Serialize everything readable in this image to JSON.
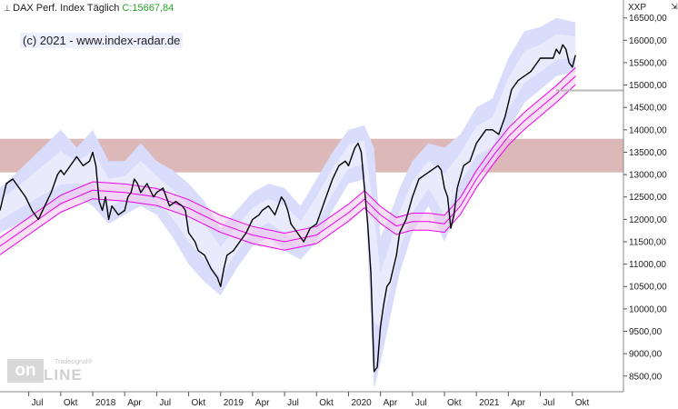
{
  "header": {
    "instrument": "DAX Perf. Index",
    "interval": "Täglich",
    "last": "C:15667,84"
  },
  "copyright": "(c) 2021 - www.index-radar.de",
  "ticker_label": "XXP",
  "control_glyph": "⇲",
  "logo": {
    "trademark": "Tradesignal®",
    "word_a": "on",
    "word_b": "LINE"
  },
  "colors": {
    "resistance_zone": "#dcb8b8",
    "band_outer": "#d9dcfb",
    "band_inner": "#e9ebfd",
    "envelope": "#ee00ee",
    "envelope_fill": "#f4c8f0",
    "price": "#000000",
    "last_line": "#b8b8b8"
  },
  "chart_data": {
    "type": "line",
    "title": "",
    "xlabel": "",
    "ylabel": "",
    "ylim": [
      8150,
      16900
    ],
    "x_ticks": [
      {
        "label": "Jul",
        "t": 0.0
      },
      {
        "label": "Okt",
        "t": 1.0
      },
      {
        "label": "2018",
        "t": 2.0
      },
      {
        "label": "Apr",
        "t": 3.0
      },
      {
        "label": "Jul",
        "t": 4.0
      },
      {
        "label": "Okt",
        "t": 5.0
      },
      {
        "label": "2019",
        "t": 6.0
      },
      {
        "label": "Apr",
        "t": 7.0
      },
      {
        "label": "Jul",
        "t": 8.0
      },
      {
        "label": "Okt",
        "t": 9.0
      },
      {
        "label": "2020",
        "t": 10.0
      },
      {
        "label": "Apr",
        "t": 11.0
      },
      {
        "label": "Jul",
        "t": 12.0
      },
      {
        "label": "Okt",
        "t": 13.0
      },
      {
        "label": "2021",
        "t": 14.0
      },
      {
        "label": "Apr",
        "t": 15.0
      },
      {
        "label": "Jul",
        "t": 16.0
      },
      {
        "label": "Okt",
        "t": 17.0
      }
    ],
    "x_range": [
      -0.9,
      18.6
    ],
    "y_ticks": [
      8500,
      9000,
      9500,
      10000,
      10500,
      11000,
      11500,
      12000,
      12500,
      13000,
      13500,
      14000,
      14500,
      15000,
      15500,
      16000,
      16500
    ],
    "y_tick_labels": [
      "8500,00",
      "9000,00",
      "9500,00",
      "10000,00",
      "10500,00",
      "11000,00",
      "11500,00",
      "12000,00",
      "12500,00",
      "13000,00",
      "13500,00",
      "14000,00",
      "14500,00",
      "15000,00",
      "15500,00",
      "16000,00",
      "16500,00"
    ],
    "resistance_zone": [
      13050,
      13800
    ],
    "last_price_line": 14880,
    "price": [
      [
        -0.9,
        12200
      ],
      [
        -0.7,
        12800
      ],
      [
        -0.5,
        12900
      ],
      [
        -0.3,
        12700
      ],
      [
        -0.1,
        12500
      ],
      [
        0.1,
        12200
      ],
      [
        0.3,
        12000
      ],
      [
        0.5,
        12300
      ],
      [
        0.7,
        12600
      ],
      [
        0.9,
        13000
      ],
      [
        1.0,
        13100
      ],
      [
        1.1,
        13000
      ],
      [
        1.3,
        13200
      ],
      [
        1.5,
        13400
      ],
      [
        1.7,
        13200
      ],
      [
        1.9,
        13300
      ],
      [
        2.0,
        13500
      ],
      [
        2.1,
        13200
      ],
      [
        2.2,
        12400
      ],
      [
        2.3,
        12200
      ],
      [
        2.4,
        12500
      ],
      [
        2.5,
        12000
      ],
      [
        2.6,
        12300
      ],
      [
        2.8,
        12100
      ],
      [
        3.0,
        12200
      ],
      [
        3.1,
        12500
      ],
      [
        3.2,
        12600
      ],
      [
        3.3,
        12900
      ],
      [
        3.4,
        12800
      ],
      [
        3.5,
        12600
      ],
      [
        3.7,
        12800
      ],
      [
        3.9,
        12500
      ],
      [
        4.0,
        12600
      ],
      [
        4.2,
        12700
      ],
      [
        4.4,
        12300
      ],
      [
        4.6,
        12400
      ],
      [
        4.8,
        12300
      ],
      [
        4.9,
        12200
      ],
      [
        5.0,
        11700
      ],
      [
        5.2,
        11500
      ],
      [
        5.3,
        11300
      ],
      [
        5.5,
        11200
      ],
      [
        5.7,
        10900
      ],
      [
        5.9,
        10700
      ],
      [
        6.0,
        10500
      ],
      [
        6.1,
        10900
      ],
      [
        6.2,
        11200
      ],
      [
        6.4,
        11300
      ],
      [
        6.6,
        11500
      ],
      [
        6.8,
        11700
      ],
      [
        7.0,
        12000
      ],
      [
        7.2,
        12100
      ],
      [
        7.3,
        12200
      ],
      [
        7.5,
        12300
      ],
      [
        7.7,
        12100
      ],
      [
        7.9,
        12500
      ],
      [
        8.0,
        12400
      ],
      [
        8.1,
        12200
      ],
      [
        8.2,
        11900
      ],
      [
        8.4,
        11700
      ],
      [
        8.6,
        11500
      ],
      [
        8.8,
        11800
      ],
      [
        9.0,
        11900
      ],
      [
        9.2,
        12300
      ],
      [
        9.3,
        12500
      ],
      [
        9.5,
        12900
      ],
      [
        9.7,
        13200
      ],
      [
        9.9,
        13300
      ],
      [
        10.0,
        13200
      ],
      [
        10.1,
        13400
      ],
      [
        10.2,
        13600
      ],
      [
        10.3,
        13700
      ],
      [
        10.4,
        13500
      ],
      [
        10.5,
        12700
      ],
      [
        10.6,
        11900
      ],
      [
        10.7,
        10800
      ],
      [
        10.8,
        8600
      ],
      [
        10.9,
        8700
      ],
      [
        11.0,
        9600
      ],
      [
        11.1,
        10100
      ],
      [
        11.2,
        10500
      ],
      [
        11.3,
        10600
      ],
      [
        11.4,
        10900
      ],
      [
        11.5,
        11200
      ],
      [
        11.6,
        11700
      ],
      [
        11.8,
        12000
      ],
      [
        12.0,
        12500
      ],
      [
        12.2,
        12900
      ],
      [
        12.4,
        13000
      ],
      [
        12.6,
        13100
      ],
      [
        12.8,
        13200
      ],
      [
        12.9,
        13100
      ],
      [
        13.0,
        12700
      ],
      [
        13.1,
        12500
      ],
      [
        13.2,
        11800
      ],
      [
        13.3,
        12100
      ],
      [
        13.4,
        12700
      ],
      [
        13.6,
        13200
      ],
      [
        13.8,
        13300
      ],
      [
        14.0,
        13700
      ],
      [
        14.1,
        13800
      ],
      [
        14.3,
        14000
      ],
      [
        14.5,
        14000
      ],
      [
        14.7,
        13900
      ],
      [
        14.9,
        14300
      ],
      [
        15.0,
        14600
      ],
      [
        15.1,
        14900
      ],
      [
        15.2,
        15000
      ],
      [
        15.3,
        15100
      ],
      [
        15.5,
        15200
      ],
      [
        15.7,
        15300
      ],
      [
        15.9,
        15500
      ],
      [
        16.0,
        15600
      ],
      [
        16.2,
        15600
      ],
      [
        16.4,
        15600
      ],
      [
        16.5,
        15800
      ],
      [
        16.6,
        15700
      ],
      [
        16.7,
        15900
      ],
      [
        16.8,
        15800
      ],
      [
        16.9,
        15500
      ],
      [
        17.0,
        15400
      ],
      [
        17.1,
        15667
      ]
    ],
    "envelope_mid": [
      [
        -0.9,
        11400
      ],
      [
        0.0,
        11850
      ],
      [
        1.0,
        12350
      ],
      [
        2.0,
        12650
      ],
      [
        3.0,
        12600
      ],
      [
        4.0,
        12500
      ],
      [
        5.0,
        12250
      ],
      [
        6.0,
        11900
      ],
      [
        7.0,
        11650
      ],
      [
        8.0,
        11500
      ],
      [
        9.0,
        11650
      ],
      [
        10.0,
        12150
      ],
      [
        10.5,
        12450
      ],
      [
        11.0,
        12100
      ],
      [
        11.5,
        11850
      ],
      [
        12.0,
        11950
      ],
      [
        12.5,
        11950
      ],
      [
        13.0,
        11900
      ],
      [
        13.5,
        12300
      ],
      [
        14.0,
        12900
      ],
      [
        14.5,
        13400
      ],
      [
        15.0,
        13850
      ],
      [
        15.5,
        14200
      ],
      [
        16.0,
        14500
      ],
      [
        16.5,
        14800
      ],
      [
        17.1,
        15200
      ]
    ],
    "envelope_width": 190,
    "volatility_band": [
      [
        -0.9,
        11700,
        12700
      ],
      [
        0.0,
        12000,
        13300
      ],
      [
        1.0,
        12300,
        14000
      ],
      [
        1.5,
        12500,
        13600
      ],
      [
        2.0,
        12300,
        14000
      ],
      [
        2.5,
        11900,
        13300
      ],
      [
        3.0,
        12100,
        13300
      ],
      [
        3.5,
        12300,
        13700
      ],
      [
        4.0,
        12100,
        13300
      ],
      [
        4.5,
        11600,
        13100
      ],
      [
        5.0,
        11000,
        12800
      ],
      [
        5.5,
        10600,
        12400
      ],
      [
        6.0,
        10300,
        11800
      ],
      [
        6.5,
        10900,
        12200
      ],
      [
        7.0,
        11400,
        12600
      ],
      [
        7.5,
        11600,
        12800
      ],
      [
        8.0,
        11300,
        12700
      ],
      [
        8.5,
        11100,
        12300
      ],
      [
        9.0,
        11500,
        12900
      ],
      [
        9.5,
        12200,
        13500
      ],
      [
        10.0,
        12800,
        14000
      ],
      [
        10.5,
        12900,
        14100
      ],
      [
        10.8,
        8200,
        13600
      ],
      [
        11.0,
        8800,
        11600
      ],
      [
        11.3,
        9800,
        12100
      ],
      [
        11.6,
        10800,
        12700
      ],
      [
        12.0,
        11700,
        13300
      ],
      [
        12.5,
        12300,
        13700
      ],
      [
        13.0,
        11500,
        13600
      ],
      [
        13.5,
        12400,
        13900
      ],
      [
        14.0,
        13000,
        14500
      ],
      [
        14.5,
        13200,
        14700
      ],
      [
        15.0,
        14000,
        15600
      ],
      [
        15.5,
        14600,
        16200
      ],
      [
        16.0,
        14900,
        16300
      ],
      [
        16.5,
        15200,
        16500
      ],
      [
        17.1,
        15300,
        16400
      ]
    ]
  }
}
